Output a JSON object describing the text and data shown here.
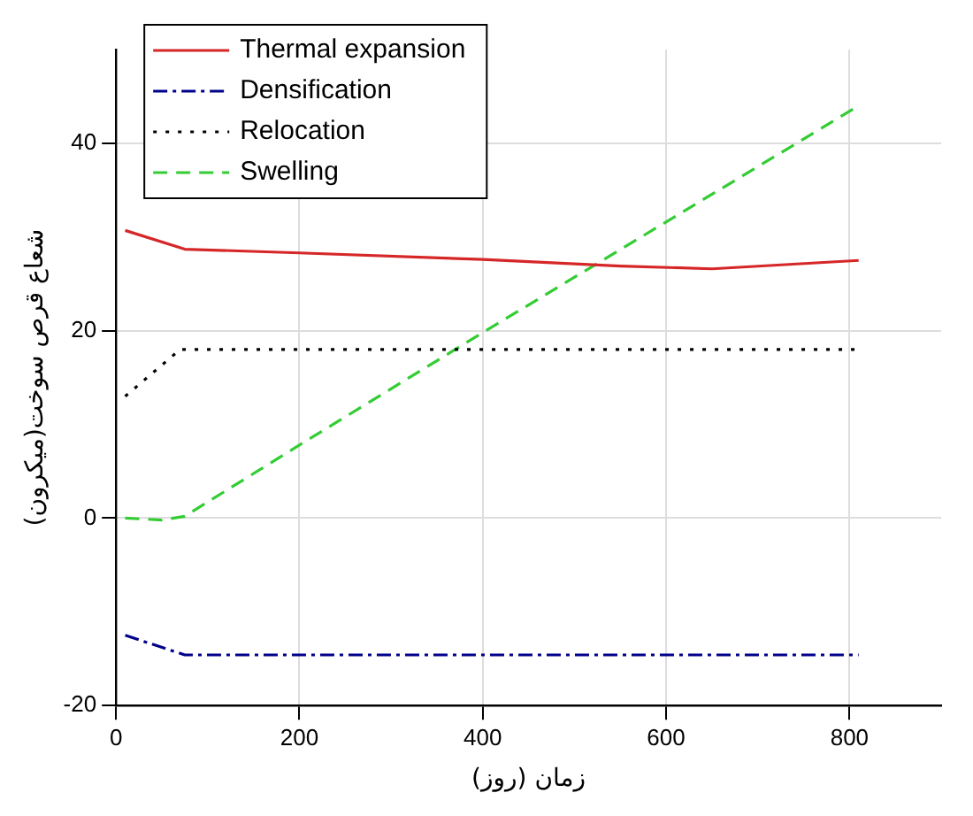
{
  "chart_data": {
    "type": "line",
    "xlabel": "زمان (روز)",
    "ylabel": "شعاع قرص سوخت(میکرون)",
    "xlim": [
      0,
      900
    ],
    "xticks": [
      0,
      200,
      400,
      600,
      800
    ],
    "ylim": [
      -20,
      50
    ],
    "yticks": [
      -20,
      0,
      20,
      40
    ],
    "grid": true,
    "legend": "top left",
    "marker": "none",
    "series": [
      {
        "name": "Thermal expansion",
        "color": "#d62728",
        "line_style": "solid",
        "x": [
          10,
          75,
          200,
          400,
          550,
          650,
          810
        ],
        "values": [
          30.7,
          28.7,
          28.3,
          27.6,
          26.9,
          26.6,
          27.5
        ]
      },
      {
        "name": "Densification",
        "color": "#00008b",
        "line_style": "dashdot",
        "x": [
          10,
          75,
          810
        ],
        "values": [
          -12.5,
          -14.6,
          -14.6
        ]
      },
      {
        "name": "Relocation",
        "color": "#000000",
        "line_style": "dotted",
        "x": [
          10,
          70,
          810
        ],
        "values": [
          13,
          18,
          18
        ]
      },
      {
        "name": "Swelling",
        "color": "#33cc33",
        "line_style": "dashed",
        "x": [
          10,
          50,
          75,
          200,
          400,
          810
        ],
        "values": [
          0,
          -0.2,
          0.2,
          7.8,
          19.8,
          44
        ]
      }
    ]
  }
}
